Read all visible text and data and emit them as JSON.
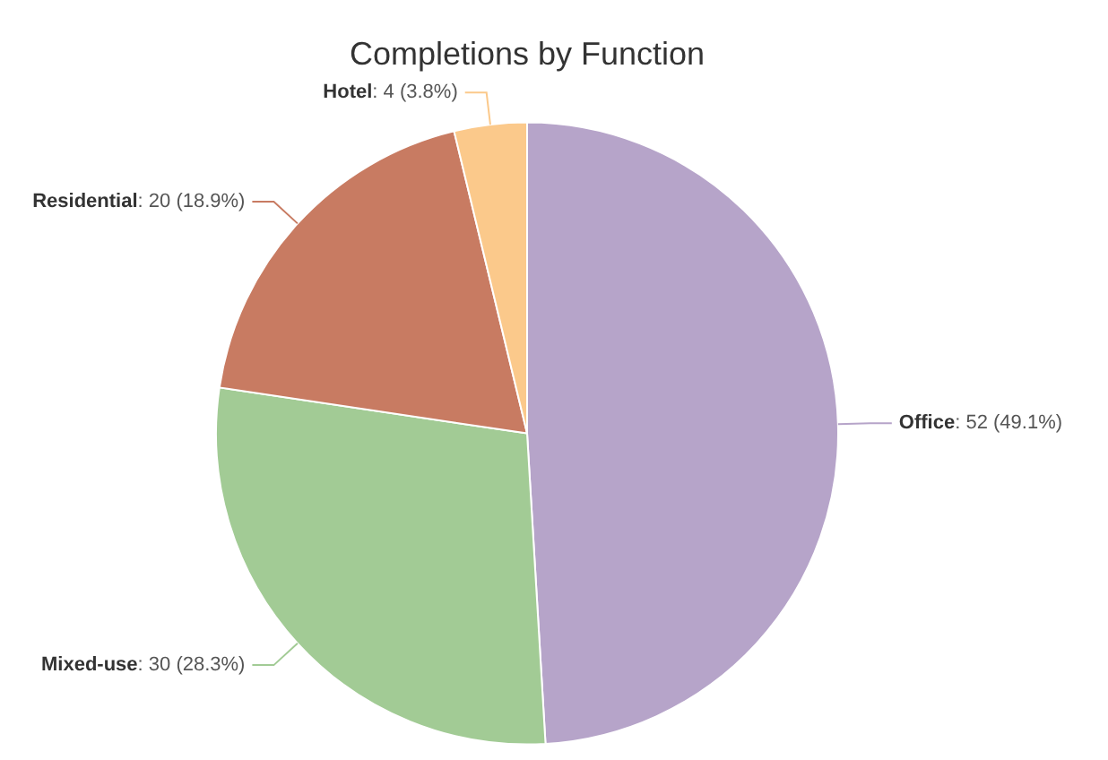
{
  "chart_data": {
    "type": "pie",
    "title": "Completions by Function",
    "categories": [
      "Office",
      "Mixed-use",
      "Residential",
      "Hotel"
    ],
    "values": [
      52,
      30,
      20,
      4
    ],
    "value_labels": [
      ": 52 (49.1%)",
      ": 30 (28.3%)",
      ": 20 (18.9%)",
      ": 4 (3.8%)"
    ],
    "colors": [
      "#b6a4c9",
      "#a2cb95",
      "#c87b62",
      "#fbc98b"
    ],
    "legend": false
  }
}
